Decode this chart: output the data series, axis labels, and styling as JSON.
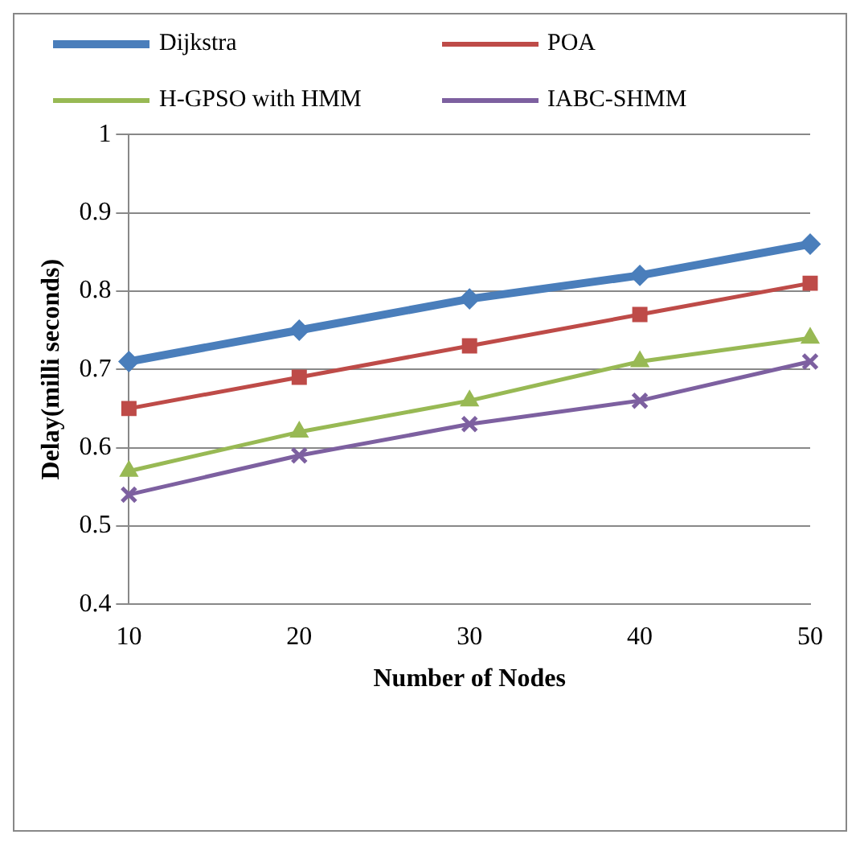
{
  "chart_data": {
    "type": "line",
    "xlabel": "Number of Nodes",
    "ylabel": "Delay(milli seconds)",
    "categories": [
      "10",
      "20",
      "30",
      "40",
      "50"
    ],
    "series": [
      {
        "name": "Dijkstra",
        "color": "#4a7ebb",
        "marker": "diamond",
        "values": [
          0.71,
          0.75,
          0.79,
          0.82,
          0.86
        ]
      },
      {
        "name": "POA",
        "color": "#be4b48",
        "marker": "square",
        "values": [
          0.65,
          0.69,
          0.73,
          0.77,
          0.81
        ]
      },
      {
        "name": "H-GPSO with HMM",
        "color": "#98b954",
        "marker": "triangle",
        "values": [
          0.57,
          0.62,
          0.66,
          0.71,
          0.74
        ]
      },
      {
        "name": "IABC-SHMM",
        "color": "#7d60a0",
        "marker": "cross",
        "values": [
          0.54,
          0.59,
          0.63,
          0.66,
          0.71
        ]
      }
    ],
    "ylim": [
      0.4,
      1
    ],
    "yticks": [
      0.4,
      0.5,
      0.6,
      0.7,
      0.8,
      0.9,
      1
    ],
    "grid": "y",
    "legend": "top"
  }
}
